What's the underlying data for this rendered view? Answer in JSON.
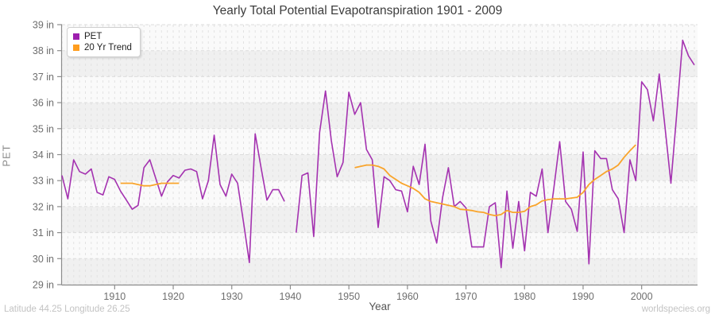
{
  "title": "Yearly Total Potential Evapotranspiration 1901 - 2009",
  "axes": {
    "x_label": "Year",
    "y_label": "PET"
  },
  "footer": {
    "left": "Latitude 44.25 Longitude 26.25",
    "right": "worldspecies.org"
  },
  "legend": {
    "items": [
      {
        "label": "PET",
        "color": "#9d1fae"
      },
      {
        "label": "20 Yr Trend",
        "color": "#ff9d1e"
      }
    ]
  },
  "chart_data": {
    "type": "line",
    "title": "Yearly Total Potential Evapotranspiration 1901 - 2009",
    "xlabel": "Year",
    "ylabel": "PET",
    "x_start": 1901,
    "x_end": 2009,
    "ylim": [
      29,
      39
    ],
    "yticks": [
      29,
      30,
      31,
      32,
      33,
      34,
      35,
      36,
      37,
      38,
      39
    ],
    "ytick_suffix": " in",
    "xticks": [
      1910,
      1920,
      1930,
      1940,
      1950,
      1960,
      1970,
      1980,
      1990,
      2000
    ],
    "grid": "per-year vertical dashed, per-inch horizontal dashed, alternating horizontal bands",
    "legend_position": "top-left",
    "note": "PET value missing for 1940 (line gap); 20-yr trend drawn only 1911-1921 and 1951-1999",
    "series": [
      {
        "name": "PET",
        "color": "#a432b0",
        "values": [
          33.2,
          32.3,
          33.8,
          33.35,
          33.25,
          33.45,
          32.55,
          32.45,
          33.15,
          33.05,
          32.6,
          32.25,
          31.9,
          32.05,
          33.5,
          33.8,
          33.1,
          32.4,
          32.95,
          33.2,
          33.1,
          33.4,
          33.45,
          33.35,
          32.3,
          33.0,
          34.75,
          32.85,
          32.4,
          33.25,
          32.9,
          31.4,
          29.85,
          34.8,
          33.5,
          32.25,
          32.65,
          32.65,
          32.2,
          null,
          31.0,
          33.2,
          33.3,
          30.85,
          34.85,
          36.45,
          34.55,
          33.15,
          33.7,
          36.4,
          35.55,
          36.0,
          34.2,
          33.8,
          31.2,
          33.15,
          33.0,
          32.65,
          32.6,
          31.8,
          33.55,
          32.85,
          34.4,
          31.45,
          30.6,
          32.35,
          33.5,
          32.0,
          32.2,
          31.95,
          30.45,
          30.45,
          30.45,
          32.0,
          32.15,
          29.65,
          32.6,
          30.4,
          32.2,
          30.3,
          32.55,
          32.4,
          33.45,
          31.0,
          32.7,
          34.5,
          32.2,
          31.9,
          31.05,
          34.1,
          29.8,
          34.15,
          33.85,
          33.85,
          32.65,
          32.3,
          31.0,
          33.8,
          33.0,
          36.8,
          36.5,
          35.3,
          37.1,
          35.05,
          32.9,
          35.6,
          38.4,
          37.8,
          37.45
        ]
      },
      {
        "name": "20 Yr Trend",
        "color": "#f9a42b",
        "values": [
          null,
          null,
          null,
          null,
          null,
          null,
          null,
          null,
          null,
          null,
          32.9,
          32.9,
          32.9,
          32.85,
          32.8,
          32.8,
          32.85,
          32.9,
          32.9,
          32.9,
          32.9,
          null,
          null,
          null,
          null,
          null,
          null,
          null,
          null,
          null,
          null,
          null,
          null,
          null,
          null,
          null,
          null,
          null,
          null,
          null,
          null,
          null,
          null,
          null,
          null,
          null,
          null,
          null,
          null,
          null,
          33.5,
          33.55,
          33.6,
          33.6,
          33.55,
          33.45,
          33.2,
          33.05,
          32.9,
          32.8,
          32.7,
          32.55,
          32.3,
          32.2,
          32.15,
          32.1,
          32.05,
          32.0,
          31.9,
          31.88,
          31.85,
          31.8,
          31.78,
          31.7,
          31.65,
          31.7,
          31.85,
          31.78,
          31.78,
          31.82,
          32.0,
          32.07,
          32.22,
          32.27,
          32.3,
          32.3,
          32.3,
          32.33,
          32.36,
          32.55,
          32.85,
          33.05,
          33.2,
          33.35,
          33.45,
          33.6,
          33.9,
          34.15,
          34.38,
          null,
          null,
          null,
          null,
          null,
          null,
          null,
          null,
          null,
          null
        ]
      }
    ]
  }
}
